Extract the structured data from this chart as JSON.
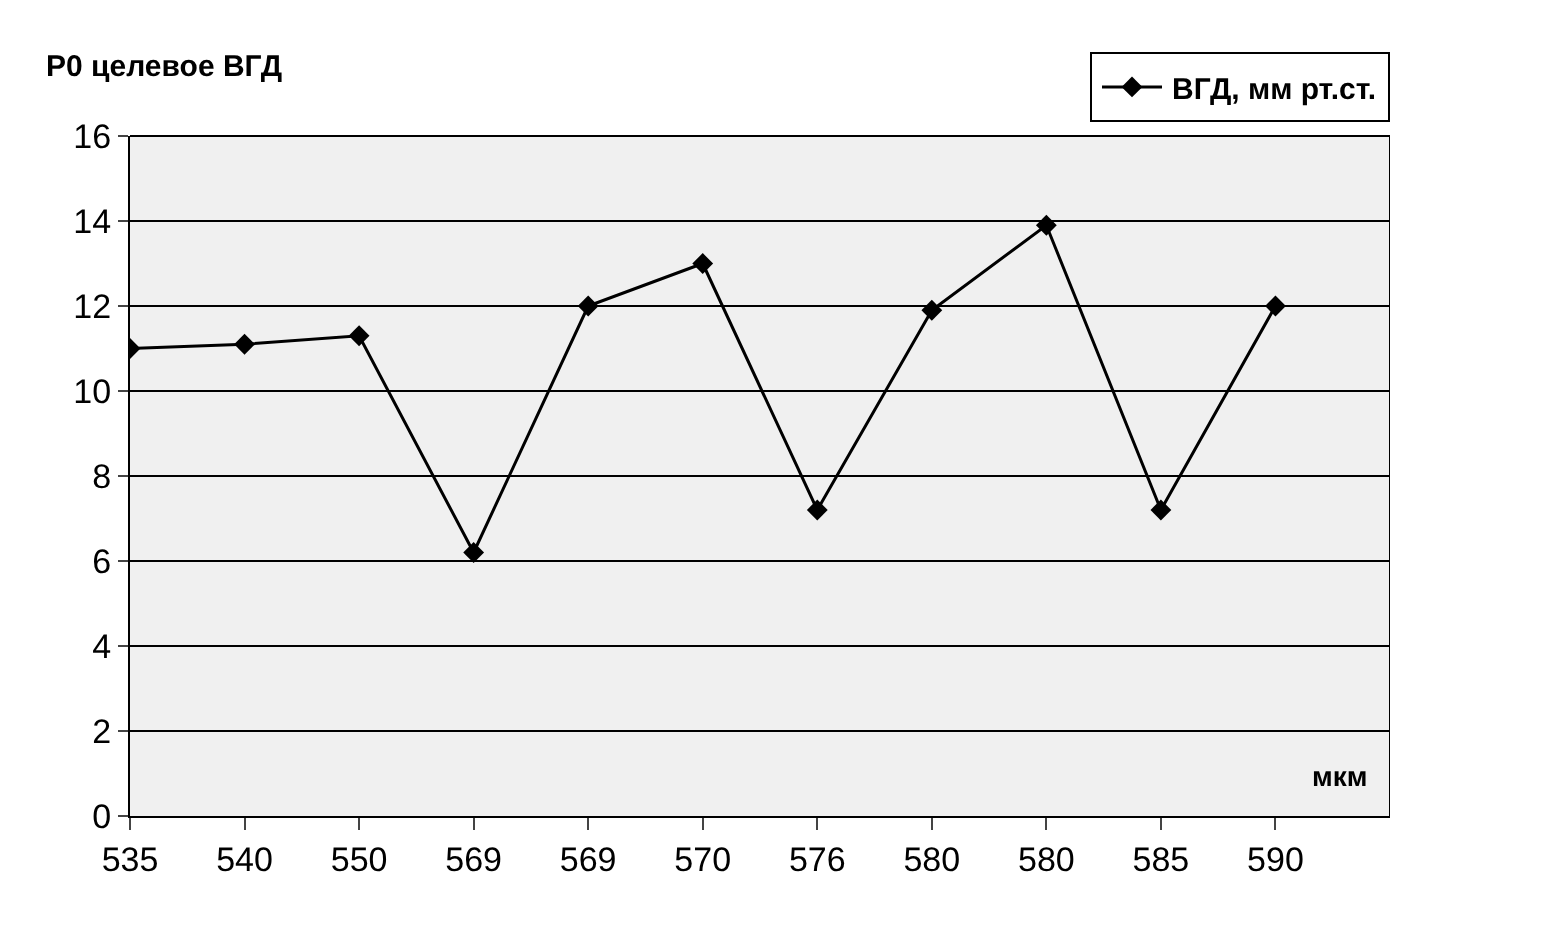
{
  "chart_data": {
    "type": "line",
    "ylabel": "P0 целевое ВГД",
    "xlabel": "мкм",
    "categories": [
      "535",
      "540",
      "550",
      "569",
      "569",
      "570",
      "576",
      "580",
      "580",
      "585",
      "590"
    ],
    "series": [
      {
        "name": "ВГД, мм рт.ст.",
        "color": "#000000",
        "values": [
          11.0,
          11.1,
          11.3,
          6.2,
          12.0,
          13.0,
          7.2,
          11.9,
          13.9,
          7.2,
          12.0
        ]
      }
    ],
    "ylim": [
      0,
      16
    ],
    "yticks": [
      0,
      2,
      4,
      6,
      8,
      10,
      12,
      14,
      16
    ],
    "grid": "y",
    "legend": "top right",
    "marker": "diamond",
    "line_style": "solid"
  }
}
